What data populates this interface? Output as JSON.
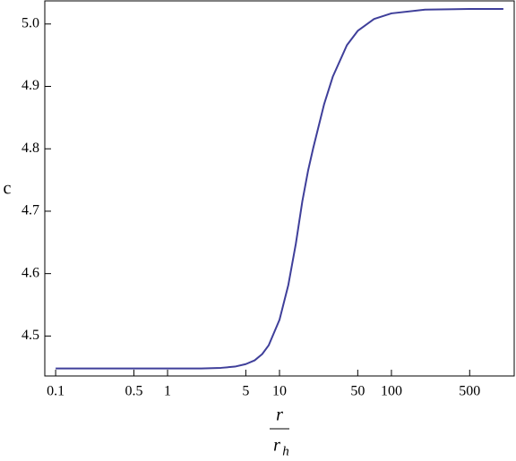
{
  "chart_data": {
    "type": "line",
    "y_label": "c",
    "x_label": {
      "numerator": "r",
      "denominator": "r",
      "denominator_subscript": "h"
    },
    "x": [
      0.1,
      0.5,
      1,
      2,
      3,
      4,
      5,
      6,
      7,
      8,
      10,
      12,
      14,
      16,
      18,
      20,
      25,
      30,
      40,
      50,
      70,
      100,
      200,
      500,
      1000
    ],
    "values": [
      4.448,
      4.448,
      4.448,
      4.448,
      4.449,
      4.451,
      4.455,
      4.461,
      4.471,
      4.485,
      4.526,
      4.582,
      4.648,
      4.716,
      4.765,
      4.801,
      4.871,
      4.916,
      4.966,
      4.989,
      5.008,
      5.017,
      5.023,
      5.024,
      5.024
    ],
    "color": "#3f3f9a",
    "xlog": true,
    "xlim": [
      0.08,
      1250
    ],
    "xticks": [
      0.1,
      0.5,
      1,
      5,
      10,
      50,
      100,
      500
    ],
    "ylim": [
      4.436,
      5.037
    ],
    "yticks": [
      4.5,
      4.6,
      4.7,
      4.8,
      4.9,
      {
        "value": 5,
        "label": "5.0"
      }
    ]
  }
}
